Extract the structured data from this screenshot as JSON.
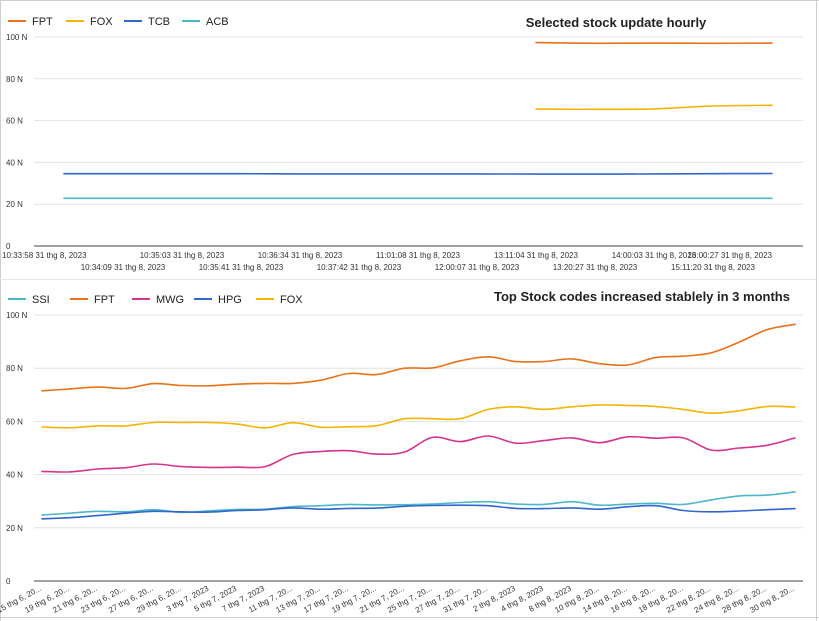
{
  "chart_data": [
    {
      "type": "line",
      "title": "Selected stock update hourly",
      "xlabel": "",
      "ylabel": "",
      "ylim": [
        0,
        100
      ],
      "yticks": [
        "0",
        "20 N",
        "40 N",
        "60 N",
        "80 N",
        "100 N"
      ],
      "legend_position": "top-left",
      "grid": true,
      "x": [
        "10:33:58 31 thg 8, 2023",
        "10:34:09 31 thg 8, 2023",
        "10:35:03 31 thg 8, 2023",
        "10:35:41 31 thg 8, 2023",
        "10:36:34 31 thg 8, 2023",
        "10:37:42 31 thg 8, 2023",
        "11:01:08 31 thg 8, 2023",
        "12:00:07 31 thg 8, 2023",
        "13:11:04 31 thg 8, 2023",
        "13:20:27 31 thg 8, 2023",
        "14:00:03 31 thg 8, 2023",
        "15:11:20 31 thg 8, 2023",
        "16:00:27 31 thg 8, 2023"
      ],
      "series": [
        {
          "name": "FPT",
          "color": "#e8711a",
          "values": [
            null,
            null,
            null,
            null,
            null,
            null,
            null,
            null,
            97.3,
            97.0,
            97.1,
            97.0,
            97.1
          ]
        },
        {
          "name": "FOX",
          "color": "#f4b400",
          "values": [
            null,
            null,
            null,
            null,
            null,
            null,
            null,
            null,
            65.5,
            65.4,
            65.6,
            67.0,
            67.3
          ]
        },
        {
          "name": "TCB",
          "color": "#3366cc",
          "values": [
            34.6,
            34.6,
            34.6,
            34.6,
            34.5,
            34.5,
            34.5,
            34.5,
            34.4,
            34.4,
            34.5,
            34.6,
            34.7
          ]
        },
        {
          "name": "ACB",
          "color": "#4db6c8",
          "values": [
            22.8,
            22.8,
            22.8,
            22.8,
            22.8,
            22.8,
            22.8,
            22.8,
            22.8,
            22.8,
            22.8,
            22.8,
            22.8
          ]
        }
      ]
    },
    {
      "type": "line",
      "title": "Top Stock codes increased stablely in 3 months",
      "xlabel": "",
      "ylabel": "",
      "ylim": [
        0,
        100
      ],
      "yticks": [
        "0",
        "20 N",
        "40 N",
        "60 N",
        "80 N",
        "100 N"
      ],
      "legend_position": "top-left",
      "grid": true,
      "x": [
        "15 thg 6, 20...",
        "19 thg 6, 20...",
        "21 thg 6, 20...",
        "23 thg 6, 20...",
        "27 thg 6, 20...",
        "29 thg 6, 20...",
        "3 thg 7, 2023",
        "5 thg 7, 2023",
        "7 thg 7, 2023",
        "11 thg 7, 20...",
        "13 thg 7, 20...",
        "17 thg 7, 20...",
        "19 thg 7, 20...",
        "21 thg 7, 20...",
        "25 thg 7, 20...",
        "27 thg 7, 20...",
        "31 thg 7, 20...",
        "2 thg 8, 2023",
        "4 thg 8, 2023",
        "8 thg 8, 2023",
        "10 thg 8, 20...",
        "14 thg 8, 20...",
        "16 thg 8, 20...",
        "18 thg 8, 20...",
        "22 thg 8, 20...",
        "24 thg 8, 20...",
        "28 thg 8, 20...",
        "30 thg 8, 20..."
      ],
      "series": [
        {
          "name": "SSI",
          "color": "#4db6c8",
          "values": [
            24.8,
            25.5,
            26.2,
            26.0,
            26.8,
            25.8,
            26.4,
            26.9,
            27.0,
            28.0,
            28.3,
            28.8,
            28.6,
            28.7,
            28.9,
            29.5,
            29.8,
            28.9,
            28.8,
            29.8,
            28.5,
            28.9,
            29.2,
            28.8,
            30.5,
            32.0,
            32.3,
            33.5
          ]
        },
        {
          "name": "FPT",
          "color": "#e8711a",
          "values": [
            71.5,
            72.2,
            72.9,
            72.4,
            74.2,
            73.5,
            73.4,
            74.0,
            74.3,
            74.3,
            75.5,
            78.0,
            77.6,
            80.0,
            80.1,
            82.8,
            84.3,
            82.5,
            82.5,
            83.5,
            81.7,
            81.2,
            84.0,
            84.5,
            85.8,
            89.8,
            94.5,
            96.5
          ]
        },
        {
          "name": "MWG",
          "color": "#d6338c",
          "values": [
            41.2,
            41.0,
            42.1,
            42.6,
            44.0,
            43.0,
            42.7,
            42.8,
            43.0,
            47.6,
            48.7,
            49.0,
            47.7,
            48.5,
            54.0,
            52.4,
            54.5,
            51.8,
            52.8,
            53.8,
            52.0,
            54.2,
            53.7,
            53.8,
            49.2,
            50.0,
            51.0,
            53.8
          ]
        },
        {
          "name": "HPG",
          "color": "#3366cc",
          "values": [
            23.4,
            23.8,
            24.6,
            25.5,
            26.2,
            26.0,
            25.9,
            26.5,
            26.8,
            27.5,
            27.0,
            27.3,
            27.4,
            28.1,
            28.4,
            28.5,
            28.3,
            27.3,
            27.2,
            27.5,
            27.0,
            27.9,
            28.3,
            26.5,
            26.0,
            26.3,
            26.8,
            27.2
          ]
        },
        {
          "name": "FOX",
          "color": "#f4b400",
          "values": [
            57.9,
            57.6,
            58.3,
            58.3,
            59.6,
            59.6,
            59.6,
            59.0,
            57.6,
            59.5,
            57.8,
            58.0,
            58.4,
            61.0,
            61.0,
            61.0,
            64.5,
            65.5,
            64.5,
            65.5,
            66.2,
            66.0,
            65.6,
            64.5,
            63.1,
            64.0,
            65.6,
            65.4
          ]
        }
      ]
    }
  ]
}
